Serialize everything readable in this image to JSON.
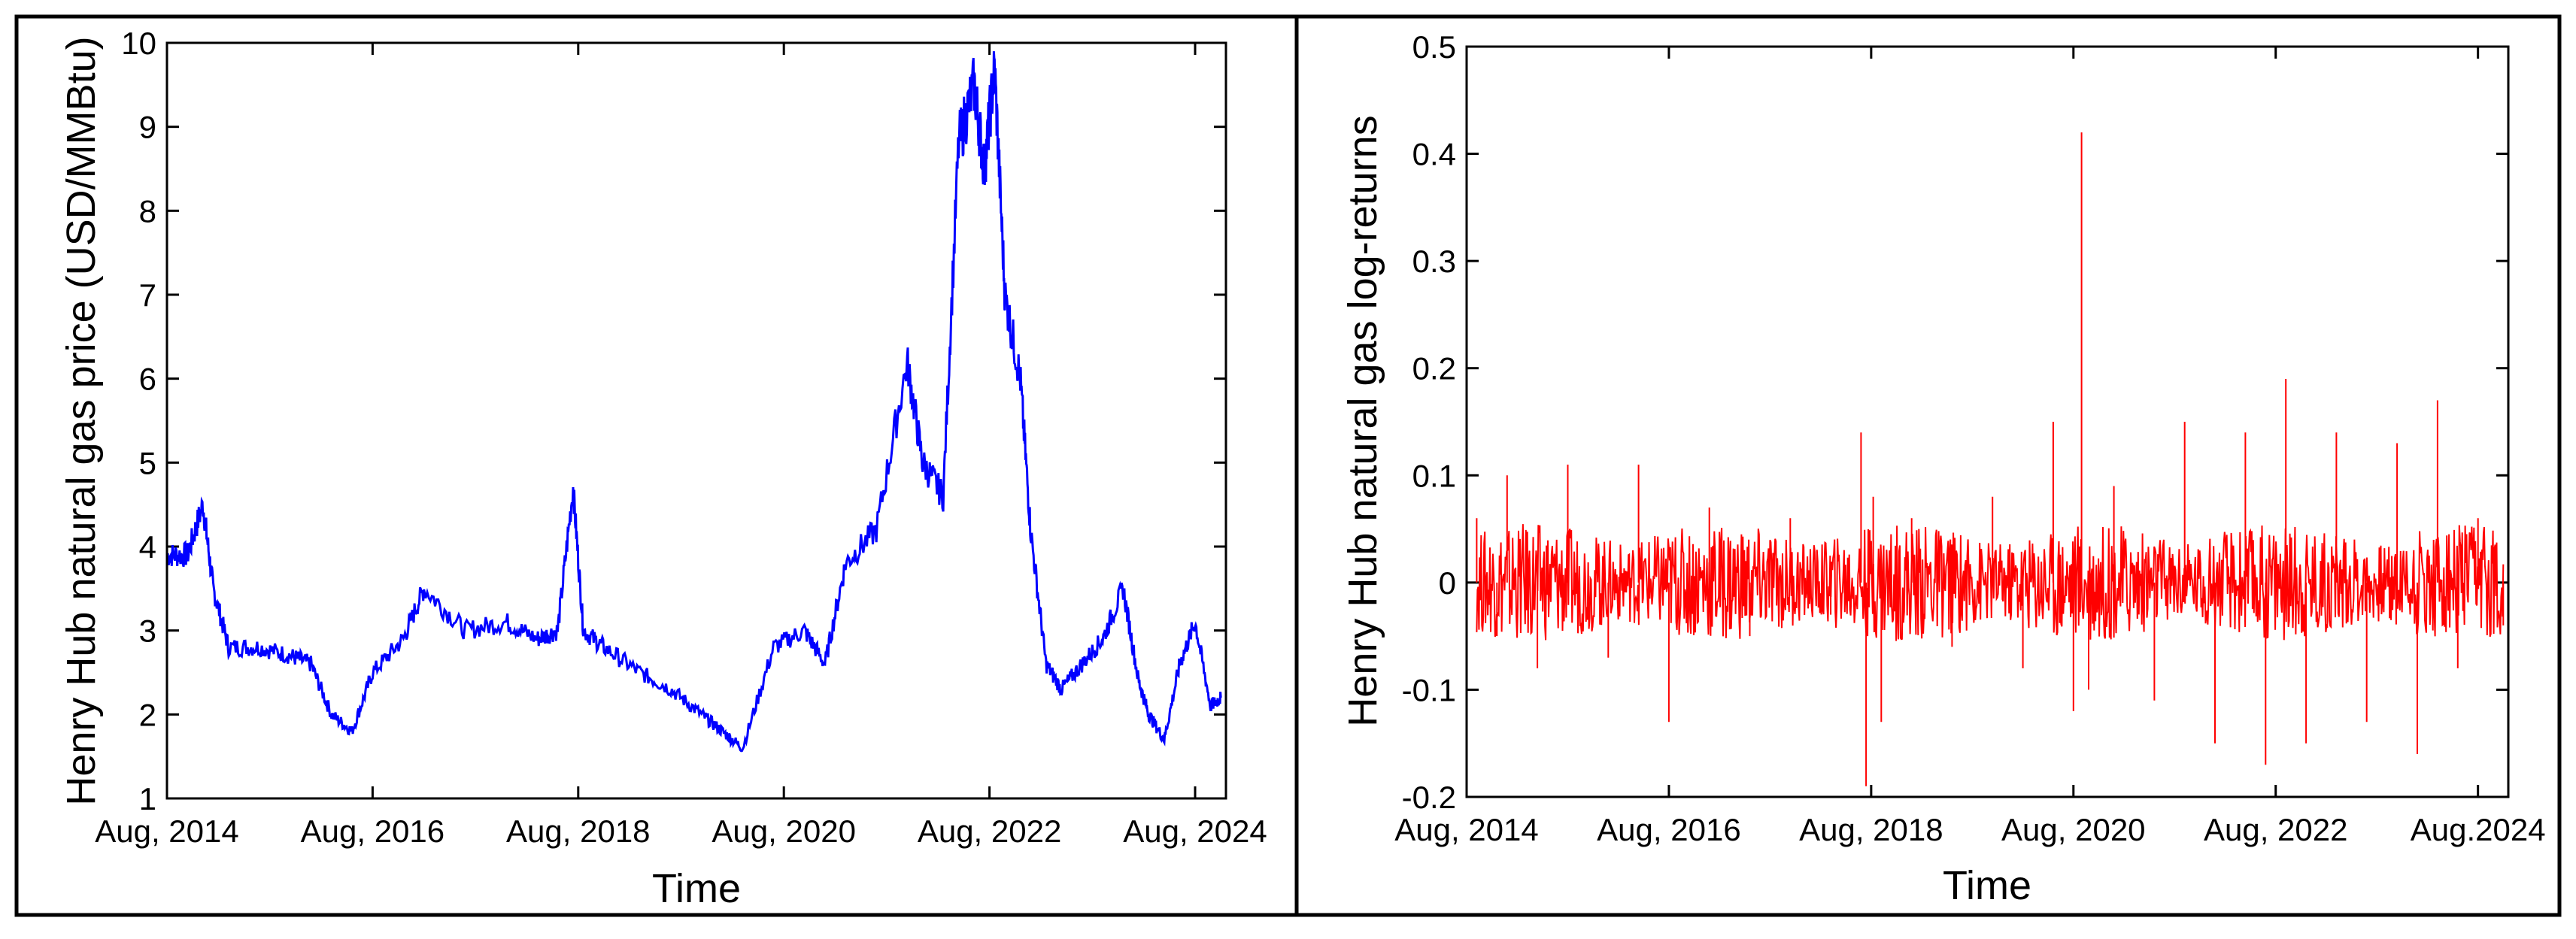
{
  "chart_data": [
    {
      "type": "line",
      "title": "",
      "xlabel": "Time",
      "ylabel": "Henry Hub natural gas price (USD/MMBtu)",
      "xlim": [
        2014.6,
        2024.9
      ],
      "ylim": [
        1,
        10
      ],
      "xticks": [
        2014.6,
        2016.6,
        2018.6,
        2020.6,
        2022.6,
        2024.6
      ],
      "xtick_labels": [
        "Aug, 2014",
        "Aug, 2016",
        "Aug, 2018",
        "Aug, 2020",
        "Aug, 2022",
        "Aug, 2024"
      ],
      "yticks": [
        1,
        2,
        3,
        4,
        5,
        6,
        7,
        8,
        9,
        10
      ],
      "ytick_labels": [
        "1",
        "2",
        "3",
        "4",
        "5",
        "6",
        "7",
        "8",
        "9",
        "10"
      ],
      "color": "#0000ff",
      "series": [
        {
          "name": "price",
          "x": [
            2014.6,
            2014.8,
            2014.95,
            2015.05,
            2015.2,
            2015.5,
            2015.8,
            2016.0,
            2016.2,
            2016.4,
            2016.6,
            2016.9,
            2017.1,
            2017.5,
            2017.9,
            2018.2,
            2018.4,
            2018.55,
            2018.65,
            2018.85,
            2019.2,
            2019.5,
            2019.8,
            2020.0,
            2020.2,
            2020.5,
            2020.8,
            2021.0,
            2021.2,
            2021.5,
            2021.8,
            2021.95,
            2022.15,
            2022.3,
            2022.45,
            2022.55,
            2022.65,
            2022.75,
            2022.9,
            2023.0,
            2023.15,
            2023.3,
            2023.5,
            2023.7,
            2023.9,
            2024.05,
            2024.15,
            2024.3,
            2024.45,
            2024.6,
            2024.75,
            2024.85
          ],
          "y": [
            3.9,
            3.9,
            4.5,
            3.5,
            2.8,
            2.8,
            2.7,
            2.6,
            2.0,
            1.8,
            2.5,
            2.9,
            3.5,
            3.0,
            3.1,
            2.9,
            3.0,
            4.7,
            3.0,
            2.8,
            2.5,
            2.3,
            2.0,
            1.8,
            1.6,
            2.8,
            3.0,
            2.6,
            3.8,
            4.2,
            6.2,
            5.0,
            4.6,
            8.8,
            9.5,
            8.5,
            9.7,
            7.0,
            6.0,
            4.2,
            2.6,
            2.3,
            2.6,
            2.9,
            3.5,
            2.4,
            2.0,
            1.7,
            2.6,
            3.1,
            2.1,
            2.2
          ]
        }
      ]
    },
    {
      "type": "line",
      "title": "",
      "xlabel": "Time",
      "ylabel": "Henry Hub natural gas log-returns",
      "xlim": [
        2014.6,
        2024.9
      ],
      "ylim": [
        -0.2,
        0.5
      ],
      "xticks": [
        2014.6,
        2016.6,
        2018.6,
        2020.6,
        2022.6,
        2024.6
      ],
      "xtick_labels": [
        "Aug, 2014",
        "Aug, 2016",
        "Aug, 2018",
        "Aug, 2020",
        "Aug, 2022",
        "Aug.2024"
      ],
      "yticks": [
        -0.2,
        -0.1,
        0,
        0.1,
        0.2,
        0.3,
        0.4,
        0.5
      ],
      "ytick_labels": [
        "-0.2",
        "-0.1",
        "0",
        "0.1",
        "0.2",
        "0.3",
        "0.4",
        "0.5"
      ],
      "color": "#ff0000",
      "series": [
        {
          "name": "log-returns",
          "x": [
            2014.7,
            2014.9,
            2015.0,
            2015.3,
            2015.6,
            2016.0,
            2016.3,
            2016.6,
            2017.0,
            2017.4,
            2017.8,
            2018.2,
            2018.5,
            2018.55,
            2018.62,
            2018.7,
            2019.0,
            2019.4,
            2019.8,
            2020.1,
            2020.4,
            2020.6,
            2020.68,
            2020.75,
            2021.0,
            2021.4,
            2021.7,
            2022.0,
            2022.3,
            2022.5,
            2022.7,
            2022.9,
            2023.2,
            2023.5,
            2023.8,
            2024.0,
            2024.2,
            2024.4,
            2024.6,
            2024.85
          ],
          "y": [
            0.06,
            -0.05,
            0.1,
            -0.08,
            0.11,
            -0.07,
            0.11,
            -0.13,
            0.07,
            -0.05,
            0.06,
            -0.03,
            0.14,
            -0.19,
            0.08,
            -0.13,
            0.06,
            -0.06,
            0.08,
            -0.08,
            0.15,
            -0.12,
            0.42,
            -0.1,
            0.09,
            -0.11,
            0.15,
            -0.15,
            0.14,
            -0.17,
            0.19,
            -0.15,
            0.14,
            -0.13,
            0.13,
            -0.16,
            0.17,
            -0.08,
            0.06,
            -0.04
          ]
        }
      ]
    }
  ]
}
